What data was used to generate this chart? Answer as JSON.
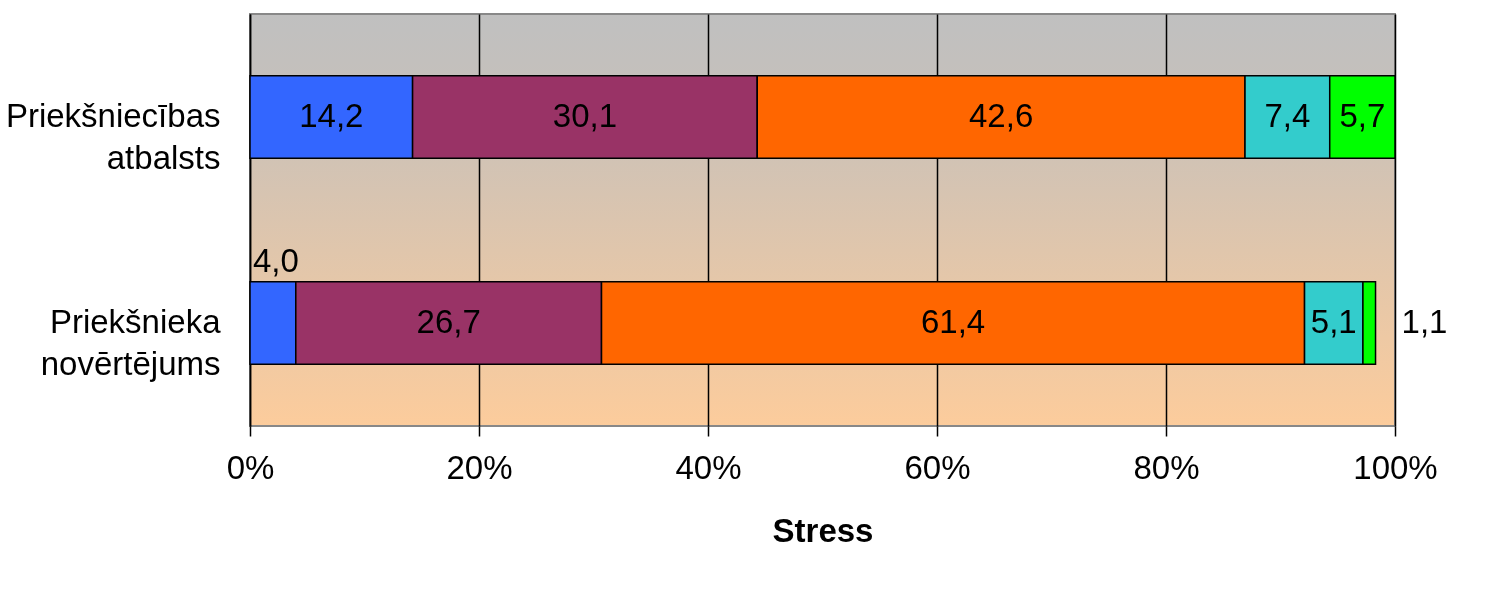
{
  "chart_data": {
    "type": "bar",
    "orientation": "horizontal",
    "stacked": true,
    "xlabel": "Stress",
    "categories": [
      "Priekšniecības atbalsts",
      "Priekšnieka novērtējums"
    ],
    "series": [
      {
        "color": "#3366ff",
        "values": [
          14.2,
          4.0
        ],
        "value_labels": [
          "14,2",
          "4,0"
        ]
      },
      {
        "color": "#993366",
        "values": [
          30.1,
          26.7
        ],
        "value_labels": [
          "30,1",
          "26,7"
        ]
      },
      {
        "color": "#ff6600",
        "values": [
          42.6,
          61.4
        ],
        "value_labels": [
          "42,6",
          "61,4"
        ]
      },
      {
        "color": "#33cccc",
        "values": [
          7.4,
          5.1
        ],
        "value_labels": [
          "7,4",
          "5,1"
        ]
      },
      {
        "color": "#00ff00",
        "values": [
          5.7,
          1.1
        ],
        "value_labels": [
          "5,7",
          "1,1"
        ]
      }
    ],
    "xlim": [
      0,
      100
    ],
    "xticks": [
      {
        "value": 0,
        "label": "0%"
      },
      {
        "value": 20,
        "label": "20%"
      },
      {
        "value": 40,
        "label": "40%"
      },
      {
        "value": 60,
        "label": "60%"
      },
      {
        "value": 80,
        "label": "80%"
      },
      {
        "value": 100,
        "label": "100%"
      }
    ],
    "grid": "x"
  }
}
